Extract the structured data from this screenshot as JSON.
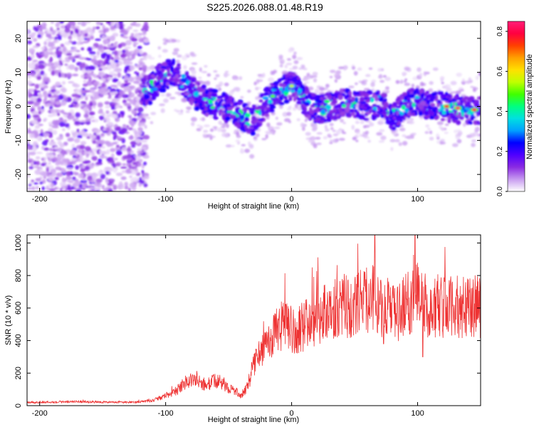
{
  "figure_title": "S225.2026.088.01.48.R19",
  "chart_data": [
    {
      "type": "heatmap",
      "title": "S225.2026.088.01.48.R19",
      "xlabel": "Height of straight line (km)",
      "ylabel": "Frequency (Hz)",
      "xlim": [
        -210,
        150
      ],
      "ylim": [
        -25,
        25
      ],
      "xticks": [
        -200,
        -100,
        0,
        100
      ],
      "yticks": [
        -20,
        -10,
        0,
        10,
        20
      ],
      "colorbar": {
        "label": "Normalized spectral amplitude",
        "range": [
          0,
          0.85
        ],
        "ticks": [
          0.0,
          0.2,
          0.4,
          0.6,
          0.8
        ],
        "colors": [
          "#ffffff",
          "#c89cf0",
          "#8a2be2",
          "#5000ff",
          "#0000ff",
          "#00a0ff",
          "#00e0e0",
          "#00ff80",
          "#40ff00",
          "#c0ff00",
          "#ffe000",
          "#ffa000",
          "#ff4000",
          "#ff0040",
          "#ff1e78"
        ]
      },
      "ridge": {
        "x": [
          -115,
          -105,
          -95,
          -85,
          -75,
          -65,
          -55,
          -45,
          -38,
          -32,
          -25,
          -18,
          -10,
          -5,
          0,
          5,
          10,
          15,
          20,
          30,
          40,
          50,
          60,
          70,
          80,
          90,
          100,
          110,
          120,
          130,
          140,
          150
        ],
        "freq": [
          4,
          8,
          10,
          7,
          3,
          1,
          0,
          -2,
          -3,
          -5,
          -1,
          2,
          4,
          5,
          6,
          5,
          2,
          0,
          -1,
          0,
          1,
          1,
          0,
          1,
          -3,
          0,
          2,
          0,
          0,
          -1,
          -1,
          -1
        ]
      },
      "strong_features": [
        {
          "x": 123,
          "freq": 0,
          "amplitude": 0.8
        },
        {
          "x": 132,
          "freq": -0.5,
          "amplitude": 0.85
        },
        {
          "x": 145,
          "freq": -1,
          "amplitude": 0.82
        },
        {
          "x": 0,
          "freq": 6,
          "amplitude": 0.55
        },
        {
          "x": -15,
          "freq": 3,
          "amplitude": 0.5
        }
      ]
    },
    {
      "type": "line",
      "xlabel": "Height of straight line (km)",
      "ylabel": "SNR (10 * v/v)",
      "xlim": [
        -210,
        150
      ],
      "ylim": [
        0,
        1050
      ],
      "xticks": [
        -200,
        -100,
        0,
        100
      ],
      "yticks": [
        0,
        200,
        400,
        600,
        800,
        1000
      ],
      "color": "#ee3333",
      "series": [
        {
          "name": "SNR",
          "x": [
            -210,
            -190,
            -170,
            -150,
            -130,
            -120,
            -110,
            -100,
            -95,
            -90,
            -85,
            -80,
            -75,
            -70,
            -65,
            -60,
            -55,
            -50,
            -45,
            -40,
            -35,
            -30,
            -25,
            -20,
            -15,
            -10,
            -5,
            0,
            5,
            10,
            15,
            20,
            25,
            30,
            35,
            40,
            45,
            50,
            55,
            60,
            65,
            70,
            75,
            80,
            85,
            90,
            95,
            100,
            105,
            110,
            115,
            120,
            125,
            130,
            135,
            140,
            145,
            150
          ],
          "values": [
            20,
            22,
            24,
            22,
            20,
            24,
            30,
            60,
            80,
            100,
            140,
            160,
            150,
            130,
            140,
            150,
            140,
            110,
            90,
            60,
            120,
            250,
            330,
            380,
            430,
            470,
            500,
            460,
            470,
            490,
            520,
            540,
            570,
            590,
            600,
            620,
            610,
            600,
            640,
            650,
            680,
            620,
            600,
            560,
            580,
            610,
            650,
            700,
            640,
            560,
            620,
            610,
            600,
            610,
            600,
            600,
            610,
            600
          ],
          "spikes": [
            {
              "x": 66,
              "value": 1050
            },
            {
              "x": 98,
              "value": 1050
            },
            {
              "x": 58,
              "value": 820
            },
            {
              "x": 104,
              "value": 300
            },
            {
              "x": 73,
              "value": 380
            }
          ]
        }
      ]
    }
  ]
}
